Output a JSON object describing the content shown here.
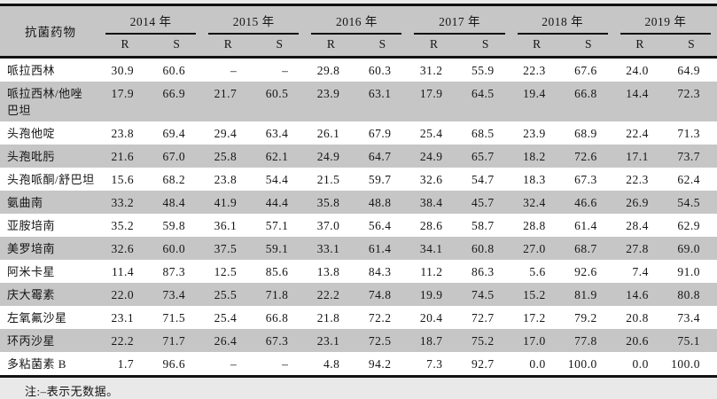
{
  "table": {
    "drug_column_header": "抗菌药物",
    "years": [
      "2014 年",
      "2015 年",
      "2016 年",
      "2017 年",
      "2018 年",
      "2019 年"
    ],
    "subheaders": [
      "R",
      "S"
    ],
    "rows": [
      {
        "drug": "哌拉西林",
        "values": [
          "30.9",
          "60.6",
          "–",
          "–",
          "29.8",
          "60.3",
          "31.2",
          "55.9",
          "22.3",
          "67.6",
          "24.0",
          "64.9"
        ]
      },
      {
        "drug": "哌拉西林/他唑\n巴坦",
        "values": [
          "17.9",
          "66.9",
          "21.7",
          "60.5",
          "23.9",
          "63.1",
          "17.9",
          "64.5",
          "19.4",
          "66.8",
          "14.4",
          "72.3"
        ]
      },
      {
        "drug": "头孢他啶",
        "values": [
          "23.8",
          "69.4",
          "29.4",
          "63.4",
          "26.1",
          "67.9",
          "25.4",
          "68.5",
          "23.9",
          "68.9",
          "22.4",
          "71.3"
        ]
      },
      {
        "drug": "头孢吡肟",
        "values": [
          "21.6",
          "67.0",
          "25.8",
          "62.1",
          "24.9",
          "64.7",
          "24.9",
          "65.7",
          "18.2",
          "72.6",
          "17.1",
          "73.7"
        ]
      },
      {
        "drug": "头孢哌酮/舒巴坦",
        "values": [
          "15.6",
          "68.2",
          "23.8",
          "54.4",
          "21.5",
          "59.7",
          "32.6",
          "54.7",
          "18.3",
          "67.3",
          "22.3",
          "62.4"
        ]
      },
      {
        "drug": "氨曲南",
        "values": [
          "33.2",
          "48.4",
          "41.9",
          "44.4",
          "35.8",
          "48.8",
          "38.4",
          "45.7",
          "32.4",
          "46.6",
          "26.9",
          "54.5"
        ]
      },
      {
        "drug": "亚胺培南",
        "values": [
          "35.2",
          "59.8",
          "36.1",
          "57.1",
          "37.0",
          "56.4",
          "28.6",
          "58.7",
          "28.8",
          "61.4",
          "28.4",
          "62.9"
        ]
      },
      {
        "drug": "美罗培南",
        "values": [
          "32.6",
          "60.0",
          "37.5",
          "59.1",
          "33.1",
          "61.4",
          "34.1",
          "60.8",
          "27.0",
          "68.7",
          "27.8",
          "69.0"
        ]
      },
      {
        "drug": "阿米卡星",
        "values": [
          "11.4",
          "87.3",
          "12.5",
          "85.6",
          "13.8",
          "84.3",
          "11.2",
          "86.3",
          "5.6",
          "92.6",
          "7.4",
          "91.0"
        ]
      },
      {
        "drug": "庆大霉素",
        "values": [
          "22.0",
          "73.4",
          "25.5",
          "71.8",
          "22.2",
          "74.8",
          "19.9",
          "74.5",
          "15.2",
          "81.9",
          "14.6",
          "80.8"
        ]
      },
      {
        "drug": "左氧氟沙星",
        "values": [
          "23.1",
          "71.5",
          "25.4",
          "66.8",
          "21.8",
          "72.2",
          "20.4",
          "72.7",
          "17.2",
          "79.2",
          "20.8",
          "73.4"
        ]
      },
      {
        "drug": "环丙沙星",
        "values": [
          "22.2",
          "71.7",
          "26.4",
          "67.3",
          "23.1",
          "72.5",
          "18.7",
          "75.2",
          "17.0",
          "77.8",
          "20.6",
          "75.1"
        ]
      },
      {
        "drug": "多粘菌素 B",
        "values": [
          "1.7",
          "96.6",
          "–",
          "–",
          "4.8",
          "94.2",
          "7.3",
          "92.7",
          "0.0",
          "100.0",
          "0.0",
          "100.0"
        ]
      }
    ]
  },
  "note": "注:–表示无数据。",
  "colors": {
    "header_bg": "#c6c6c6",
    "stripe_bg": "#c6c6c6",
    "page_bg": "#e9e9e9",
    "line": "#121212"
  }
}
